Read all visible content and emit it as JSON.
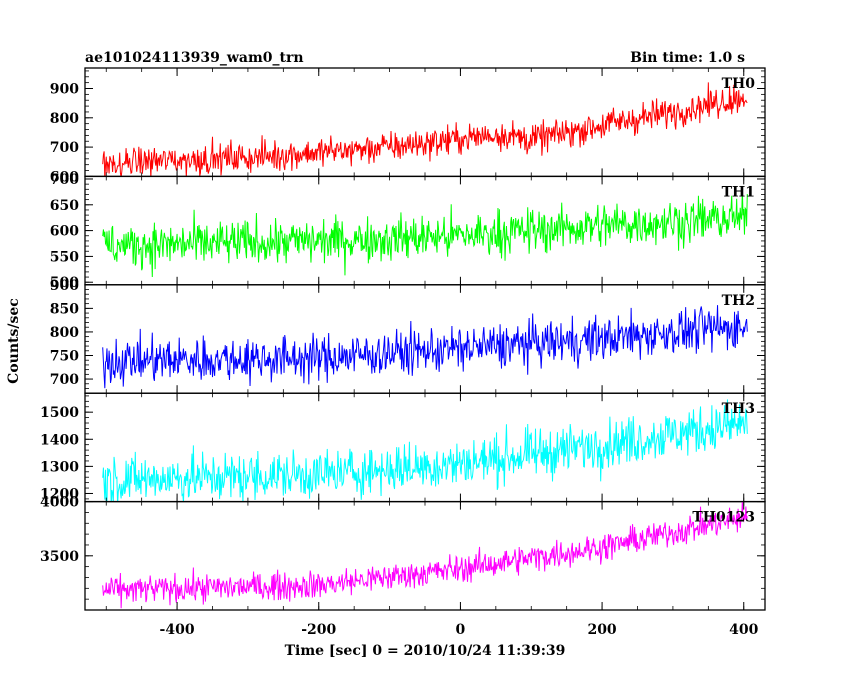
{
  "header": {
    "title": "ae101024113939_wam0_trn",
    "bin_time": "Bin time: 1.0 s"
  },
  "chart_data": {
    "type": "line",
    "xlabel": "Time [sec] 0 = 2010/10/24 11:39:39",
    "ylabel": "Counts/sec",
    "xlim": [
      -530,
      430
    ],
    "x_ticks": [
      -400,
      -200,
      0,
      200,
      400
    ],
    "x_range": [
      -505,
      405
    ],
    "x_step": 1,
    "panels": [
      {
        "name": "TH0",
        "color": "#ff0000",
        "ylim": [
          600,
          970
        ],
        "y_ticks": [
          600,
          700,
          800,
          900
        ],
        "trend": [
          [
            -505,
            645
          ],
          [
            -300,
            665
          ],
          [
            -100,
            700
          ],
          [
            60,
            745
          ],
          [
            100,
            725
          ],
          [
            200,
            775
          ],
          [
            300,
            820
          ],
          [
            405,
            875
          ]
        ],
        "noise": 26
      },
      {
        "name": "TH1",
        "color": "#00ff00",
        "ylim": [
          495,
          705
        ],
        "y_ticks": [
          500,
          550,
          600,
          650,
          700
        ],
        "trend": [
          [
            -505,
            570
          ],
          [
            -200,
            580
          ],
          [
            0,
            590
          ],
          [
            200,
            610
          ],
          [
            405,
            625
          ]
        ],
        "noise": 22
      },
      {
        "name": "TH2",
        "color": "#0000ff",
        "ylim": [
          670,
          900
        ],
        "y_ticks": [
          700,
          750,
          800,
          850,
          900
        ],
        "trend": [
          [
            -505,
            738
          ],
          [
            -200,
            745
          ],
          [
            0,
            765
          ],
          [
            200,
            785
          ],
          [
            300,
            800
          ],
          [
            405,
            812
          ]
        ],
        "noise": 24
      },
      {
        "name": "TH3",
        "color": "#00ffff",
        "ylim": [
          1170,
          1570
        ],
        "y_ticks": [
          1200,
          1300,
          1400,
          1500
        ],
        "trend": [
          [
            -505,
            1250
          ],
          [
            -200,
            1270
          ],
          [
            0,
            1310
          ],
          [
            200,
            1380
          ],
          [
            405,
            1460
          ]
        ],
        "noise": 45
      },
      {
        "name": "TH0123",
        "color": "#ff00ff",
        "ylim": [
          3000,
          4000
        ],
        "y_ticks": [
          3500,
          4000
        ],
        "trend": [
          [
            -505,
            3180
          ],
          [
            -200,
            3230
          ],
          [
            0,
            3380
          ],
          [
            200,
            3580
          ],
          [
            405,
            3860
          ]
        ],
        "noise": 65
      }
    ]
  }
}
